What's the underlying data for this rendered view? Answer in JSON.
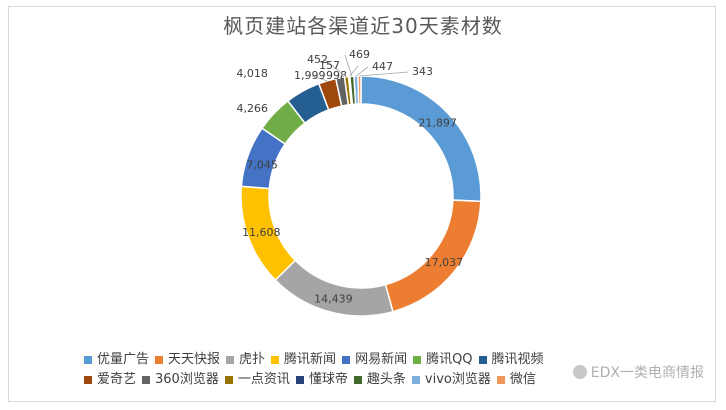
{
  "watermark": {
    "text": "EDX一类电商情报",
    "icon": "wechat-icon"
  },
  "chart_data": {
    "type": "pie",
    "variant": "doughnut",
    "title": "枫页建站各渠道近30天素材数",
    "legend_position": "bottom",
    "slices": [
      {
        "label": "优量广告",
        "value": 21897,
        "display": "21,897",
        "color": "#5b9bd5"
      },
      {
        "label": "天天快报",
        "value": 17037,
        "display": "17,037",
        "color": "#ed7d31"
      },
      {
        "label": "虎扑",
        "value": 14439,
        "display": "14,439",
        "color": "#a5a5a5"
      },
      {
        "label": "腾讯新闻",
        "value": 11608,
        "display": "11,608",
        "color": "#ffc000"
      },
      {
        "label": "网易新闻",
        "value": 7045,
        "display": "7,045",
        "color": "#4472c4"
      },
      {
        "label": "腾讯QQ",
        "value": 4266,
        "display": "4,266",
        "color": "#70ad47"
      },
      {
        "label": "腾讯视频",
        "value": 4018,
        "display": "4,018",
        "color": "#255e91"
      },
      {
        "label": "爱奇艺",
        "value": 1999,
        "display": "1,999",
        "color": "#9e480e"
      },
      {
        "label": "360浏览器",
        "value": 998,
        "display": "998",
        "color": "#636363"
      },
      {
        "label": "一点资讯",
        "value": 452,
        "display": "452",
        "color": "#997300"
      },
      {
        "label": "懂球帝",
        "value": 157,
        "display": "157",
        "color": "#264478"
      },
      {
        "label": "趣头条",
        "value": 469,
        "display": "469",
        "color": "#43682b"
      },
      {
        "label": "vivo浏览器",
        "value": 447,
        "display": "447",
        "color": "#7cafdd"
      },
      {
        "label": "微信",
        "value": 343,
        "display": "343",
        "color": "#f1975a"
      }
    ]
  }
}
